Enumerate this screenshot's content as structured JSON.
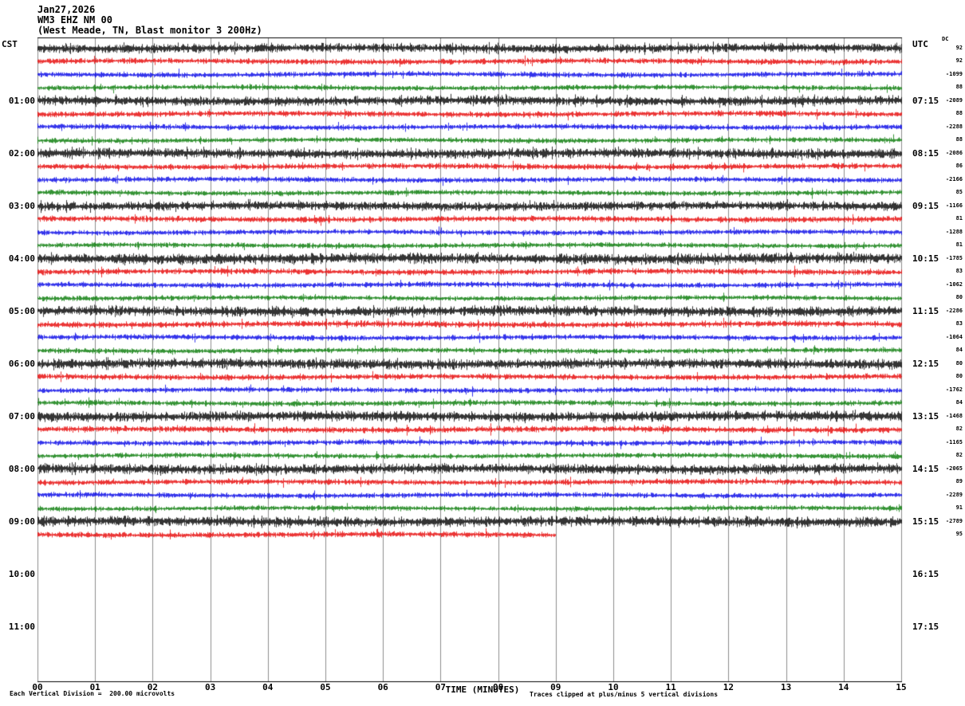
{
  "header": {
    "date": "Jan27,2026",
    "station": "WM3 EHZ NM 00",
    "description": "(West Meade, TN, Blast monitor 3 200Hz)"
  },
  "left_axis": {
    "label": "CST",
    "ticks": [
      "01:00",
      "02:00",
      "03:00",
      "04:00",
      "05:00",
      "06:00",
      "07:00",
      "08:00",
      "09:00",
      "10:00",
      "11:00"
    ]
  },
  "right_axis": {
    "label": "UTC",
    "ticks": [
      "07:15",
      "08:15",
      "09:15",
      "10:15",
      "11:15",
      "12:15",
      "13:15",
      "14:15",
      "15:15",
      "16:15",
      "17:15"
    ]
  },
  "dc_column": {
    "label": "DC",
    "values": [
      92,
      92,
      -1099,
      88,
      -2089,
      88,
      -2288,
      88,
      -2086,
      86,
      -2166,
      85,
      -1166,
      81,
      -1288,
      81,
      -1785,
      83,
      -1062,
      80,
      -2286,
      83,
      -1064,
      84,
      80,
      80,
      -1762,
      84,
      -1468,
      82,
      -1165,
      82,
      -2065,
      89,
      -2289,
      91,
      -2789,
      95
    ]
  },
  "x_axis": {
    "label": "TIME (MINUTES)",
    "ticks": [
      "00",
      "01",
      "02",
      "03",
      "04",
      "05",
      "06",
      "07",
      "08",
      "09",
      "10",
      "11",
      "12",
      "13",
      "14",
      "15"
    ]
  },
  "footer": {
    "left": "Each Vertical Division =  200.00 microvolts",
    "right": "Traces clipped at plus/minus 5 vertical divisions"
  },
  "chart_data": {
    "type": "line",
    "subtype": "helicorder_seismogram",
    "station": "WM3 EHZ NM 00",
    "location": "West Meade, TN",
    "instrument": "Blast monitor 3",
    "sample_rate_hz": 200,
    "minutes_per_row": 15,
    "x_range_minutes": [
      0,
      15
    ],
    "vertical_division_microvolts": 200.0,
    "clip_divisions": 5,
    "timezone_left": "CST",
    "timezone_right": "UTC",
    "colors": {
      "black": "#000000",
      "red": "#e60000",
      "blue": "#0000e6",
      "green": "#007700"
    },
    "rows": [
      {
        "cst": "00:00",
        "color": "black",
        "amp": 1.1
      },
      {
        "cst": "00:15",
        "color": "red",
        "amp": 1.0
      },
      {
        "cst": "00:30",
        "color": "blue",
        "amp": 0.95
      },
      {
        "cst": "00:45",
        "color": "green",
        "amp": 0.9
      },
      {
        "cst": "01:00",
        "color": "black",
        "amp": 1.15
      },
      {
        "cst": "01:15",
        "color": "red",
        "amp": 1.0
      },
      {
        "cst": "01:30",
        "color": "blue",
        "amp": 0.95
      },
      {
        "cst": "01:45",
        "color": "green",
        "amp": 0.9
      },
      {
        "cst": "02:00",
        "color": "black",
        "amp": 1.2
      },
      {
        "cst": "02:15",
        "color": "red",
        "amp": 1.0
      },
      {
        "cst": "02:30",
        "color": "blue",
        "amp": 0.95
      },
      {
        "cst": "02:45",
        "color": "green",
        "amp": 0.9
      },
      {
        "cst": "03:00",
        "color": "black",
        "amp": 1.1
      },
      {
        "cst": "03:15",
        "color": "red",
        "amp": 1.05
      },
      {
        "cst": "03:30",
        "color": "blue",
        "amp": 0.9
      },
      {
        "cst": "03:45",
        "color": "green",
        "amp": 0.9
      },
      {
        "cst": "04:00",
        "color": "black",
        "amp": 1.3
      },
      {
        "cst": "04:15",
        "color": "red",
        "amp": 1.05
      },
      {
        "cst": "04:30",
        "color": "blue",
        "amp": 0.95
      },
      {
        "cst": "04:45",
        "color": "green",
        "amp": 0.9
      },
      {
        "cst": "05:00",
        "color": "black",
        "amp": 1.25
      },
      {
        "cst": "05:15",
        "color": "red",
        "amp": 1.1
      },
      {
        "cst": "05:30",
        "color": "blue",
        "amp": 0.95
      },
      {
        "cst": "05:45",
        "color": "green",
        "amp": 0.9
      },
      {
        "cst": "06:00",
        "color": "black",
        "amp": 1.2
      },
      {
        "cst": "06:15",
        "color": "red",
        "amp": 1.0
      },
      {
        "cst": "06:30",
        "color": "blue",
        "amp": 0.9
      },
      {
        "cst": "06:45",
        "color": "green",
        "amp": 0.95
      },
      {
        "cst": "07:00",
        "color": "black",
        "amp": 1.25
      },
      {
        "cst": "07:15",
        "color": "red",
        "amp": 1.1
      },
      {
        "cst": "07:30",
        "color": "blue",
        "amp": 0.95
      },
      {
        "cst": "07:45",
        "color": "green",
        "amp": 0.9
      },
      {
        "cst": "08:00",
        "color": "black",
        "amp": 1.2
      },
      {
        "cst": "08:15",
        "color": "red",
        "amp": 1.0
      },
      {
        "cst": "08:30",
        "color": "blue",
        "amp": 0.95
      },
      {
        "cst": "08:45",
        "color": "green",
        "amp": 0.9
      },
      {
        "cst": "09:00",
        "color": "black",
        "amp": 1.25
      },
      {
        "cst": "09:15",
        "color": "red",
        "amp": 1.0,
        "end_fraction": 0.6
      }
    ]
  }
}
